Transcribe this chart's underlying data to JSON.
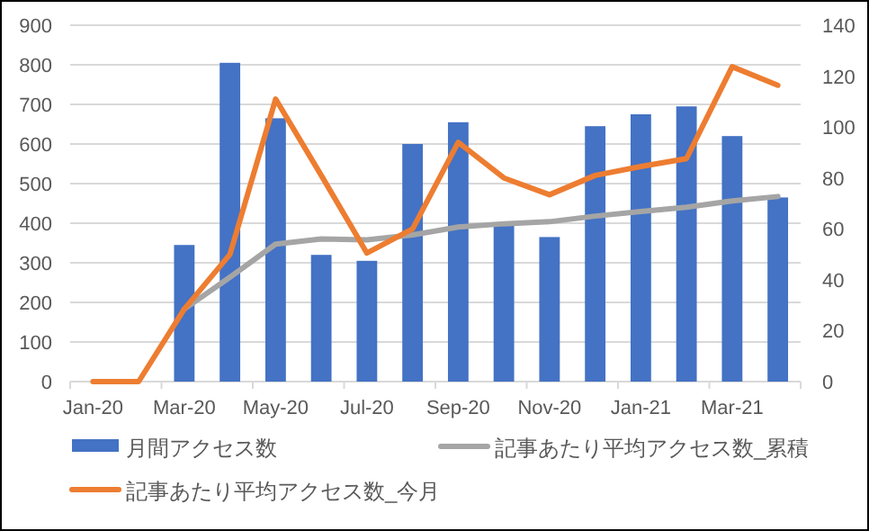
{
  "chart_data": {
    "type": "bar",
    "categories": [
      "Jan-20",
      null,
      "Mar-20",
      null,
      "May-20",
      null,
      "Jul-20",
      null,
      "Sep-20",
      null,
      "Nov-20",
      null,
      "Jan-21",
      null,
      "Mar-21",
      null
    ],
    "series": [
      {
        "name": "月間アクセス数",
        "color": "#4472c4",
        "values": [
          0,
          0,
          345,
          805,
          665,
          320,
          305,
          600,
          655,
          395,
          365,
          645,
          675,
          695,
          620,
          465
        ]
      },
      {
        "name": "記事あたり平均アクセス数_累積",
        "type": "line",
        "axis": "y2",
        "color": "#a5a5a5",
        "values": [
          null,
          null,
          28.5,
          41,
          54,
          56,
          55.7,
          57.6,
          60.7,
          62,
          62.8,
          65,
          66.8,
          68.5,
          71,
          72.7
        ]
      },
      {
        "name": "記事あたり平均アクセス数_今月",
        "type": "line",
        "axis": "y2",
        "color": "#ed7d31",
        "values": [
          0,
          0,
          28.5,
          50,
          111,
          81,
          50.5,
          60,
          94,
          80,
          73.4,
          81,
          84.5,
          87.6,
          123.7,
          116.4
        ]
      }
    ],
    "ylim": [
      0,
      900
    ],
    "yticks": [
      0,
      100,
      200,
      300,
      400,
      500,
      600,
      700,
      800,
      900
    ],
    "y2lim": [
      0,
      140
    ],
    "y2ticks": [
      0,
      20,
      40,
      60,
      80,
      100,
      120,
      140
    ],
    "grid": "y",
    "legend": "bottom",
    "marker": "none",
    "line_style": "solid"
  }
}
